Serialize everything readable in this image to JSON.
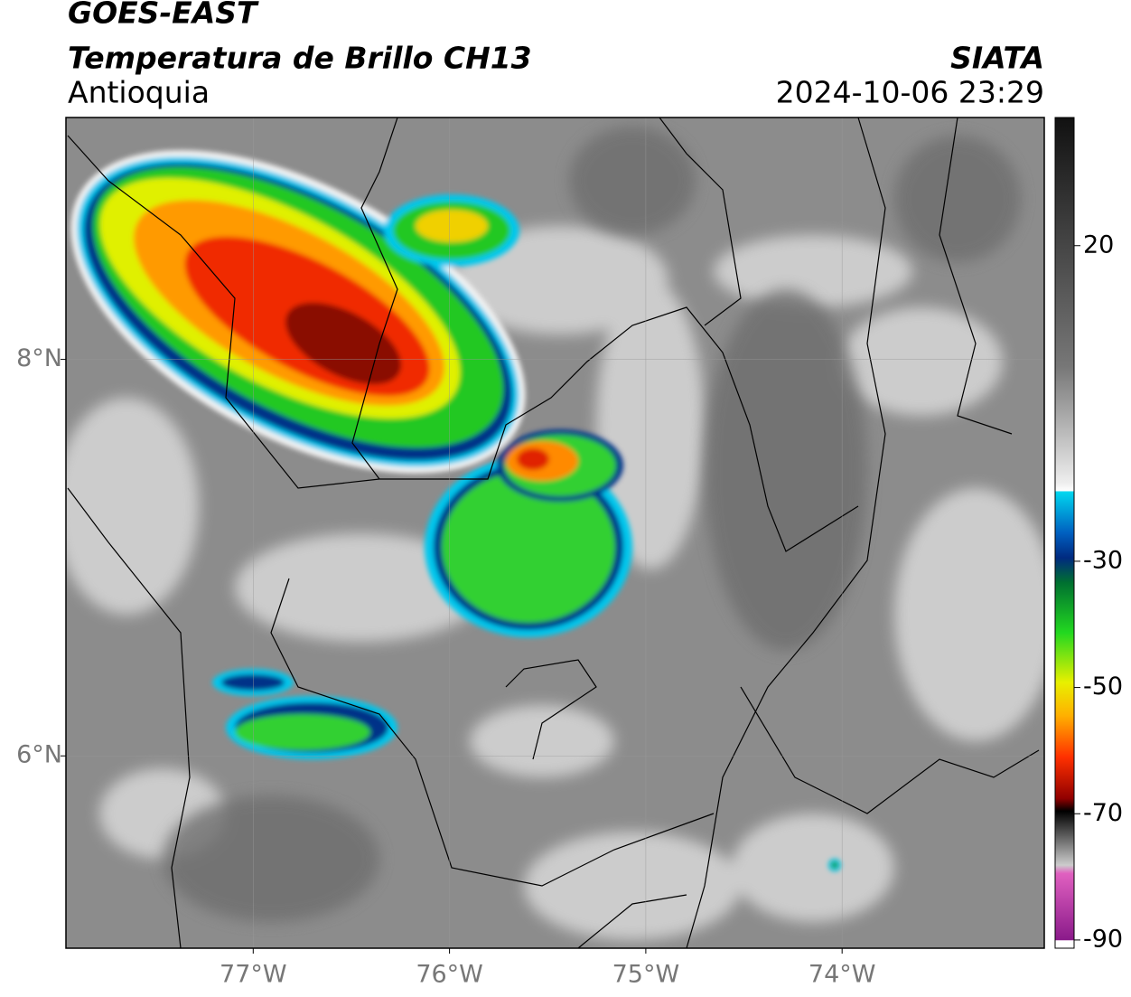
{
  "header": {
    "title": "GOES-EAST",
    "subtitle": "Temperatura de Brillo CH13",
    "region": "Antioquia",
    "source": "SIATA",
    "datetime": "2024-10-06 23:29"
  },
  "map": {
    "xlim": [
      -77.954,
      -72.97
    ],
    "ylim": [
      5.03,
      9.22
    ],
    "xticks": [
      {
        "value": -77,
        "label": "77°W"
      },
      {
        "value": -76,
        "label": "76°W"
      },
      {
        "value": -75,
        "label": "75°W"
      },
      {
        "value": -74,
        "label": "74°W"
      }
    ],
    "yticks": [
      {
        "value": 8,
        "label": "8°N"
      },
      {
        "value": 6,
        "label": "6°N"
      }
    ],
    "grid": true
  },
  "colorbar": {
    "clim": [
      -91.3,
      40.3
    ],
    "ticks": [
      20,
      -30,
      -50,
      -70,
      -90
    ]
  }
}
